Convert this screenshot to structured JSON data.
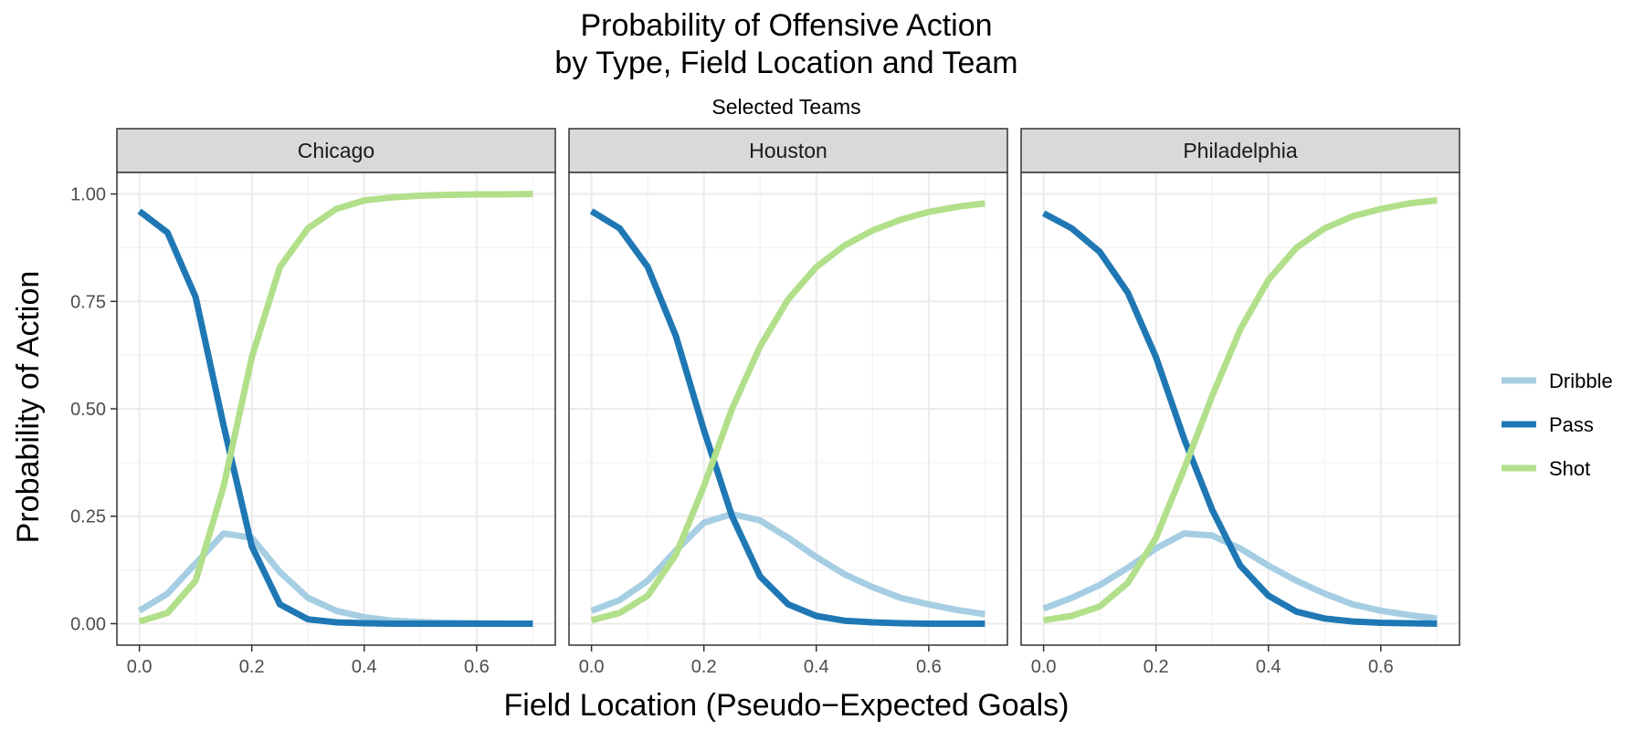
{
  "chart_data": {
    "type": "line",
    "title": "Probability of Offensive Action\nby Type, Field Location and Team",
    "subtitle": "Selected Teams",
    "xlabel": "Field Location (Pseudo−Expected Goals)",
    "ylabel": "Probability of Action",
    "xlim": [
      -0.04,
      0.74
    ],
    "ylim": [
      -0.05,
      1.05
    ],
    "x_ticks": [
      0.0,
      0.2,
      0.4,
      0.6
    ],
    "x_tick_labels": [
      "0.0",
      "0.2",
      "0.4",
      "0.6"
    ],
    "y_ticks": [
      0.0,
      0.25,
      0.5,
      0.75,
      1.0
    ],
    "y_tick_labels": [
      "0.00",
      "0.25",
      "0.50",
      "0.75",
      "1.00"
    ],
    "grid": true,
    "legend_position": "right",
    "legend": [
      {
        "name": "Dribble",
        "color": "#a6cee3"
      },
      {
        "name": "Pass",
        "color": "#1f78b4"
      },
      {
        "name": "Shot",
        "color": "#b2df8a"
      }
    ],
    "x": [
      0.0,
      0.05,
      0.1,
      0.15,
      0.2,
      0.25,
      0.3,
      0.35,
      0.4,
      0.45,
      0.5,
      0.55,
      0.6,
      0.65,
      0.7
    ],
    "panels": [
      {
        "team": "Chicago",
        "series": [
          {
            "name": "Dribble",
            "values": [
              0.03,
              0.07,
              0.14,
              0.21,
              0.2,
              0.12,
              0.06,
              0.03,
              0.015,
              0.007,
              0.004,
              0.002,
              0.001,
              0.0,
              0.0
            ]
          },
          {
            "name": "Pass",
            "values": [
              0.96,
              0.91,
              0.76,
              0.46,
              0.18,
              0.045,
              0.01,
              0.003,
              0.001,
              0.0,
              0.0,
              0.0,
              0.0,
              0.0,
              0.0
            ]
          },
          {
            "name": "Shot",
            "values": [
              0.005,
              0.025,
              0.1,
              0.32,
              0.62,
              0.83,
              0.92,
              0.965,
              0.985,
              0.992,
              0.996,
              0.998,
              0.999,
              0.999,
              1.0
            ]
          }
        ]
      },
      {
        "team": "Houston",
        "series": [
          {
            "name": "Dribble",
            "values": [
              0.03,
              0.055,
              0.1,
              0.17,
              0.235,
              0.255,
              0.24,
              0.2,
              0.155,
              0.115,
              0.085,
              0.06,
              0.045,
              0.032,
              0.022
            ]
          },
          {
            "name": "Pass",
            "values": [
              0.96,
              0.92,
              0.83,
              0.67,
              0.45,
              0.25,
              0.11,
              0.045,
              0.018,
              0.007,
              0.003,
              0.001,
              0.0,
              0.0,
              0.0
            ]
          },
          {
            "name": "Shot",
            "values": [
              0.008,
              0.025,
              0.065,
              0.16,
              0.32,
              0.5,
              0.645,
              0.755,
              0.83,
              0.88,
              0.915,
              0.94,
              0.958,
              0.97,
              0.978
            ]
          }
        ]
      },
      {
        "team": "Philadelphia",
        "series": [
          {
            "name": "Dribble",
            "values": [
              0.035,
              0.06,
              0.09,
              0.13,
              0.175,
              0.21,
              0.205,
              0.175,
              0.135,
              0.1,
              0.07,
              0.045,
              0.03,
              0.02,
              0.012
            ]
          },
          {
            "name": "Pass",
            "values": [
              0.955,
              0.92,
              0.865,
              0.77,
              0.62,
              0.43,
              0.265,
              0.135,
              0.065,
              0.028,
              0.012,
              0.005,
              0.002,
              0.001,
              0.0
            ]
          },
          {
            "name": "Shot",
            "values": [
              0.008,
              0.018,
              0.04,
              0.095,
              0.2,
              0.36,
              0.53,
              0.685,
              0.8,
              0.875,
              0.92,
              0.948,
              0.965,
              0.978,
              0.985
            ]
          }
        ]
      }
    ]
  }
}
